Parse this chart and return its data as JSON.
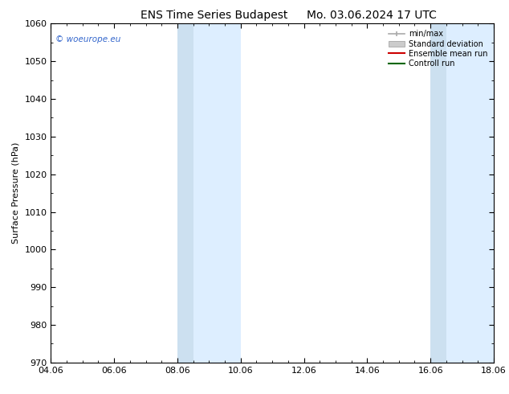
{
  "title_left": "ENS Time Series Budapest",
  "title_right": "Mo. 03.06.2024 17 UTC",
  "ylabel": "Surface Pressure (hPa)",
  "ylim": [
    970,
    1060
  ],
  "yticks": [
    970,
    980,
    990,
    1000,
    1010,
    1020,
    1030,
    1040,
    1050,
    1060
  ],
  "xlim_start": 0.0,
  "xlim_end": 14.0,
  "xtick_positions": [
    0,
    2,
    4,
    6,
    8,
    10,
    12,
    14
  ],
  "xtick_labels": [
    "04.06",
    "06.06",
    "08.06",
    "10.06",
    "12.06",
    "14.06",
    "16.06",
    "18.06"
  ],
  "shaded_bands": [
    {
      "xmin": 4.0,
      "xmax": 4.5,
      "color": "#cce0f0"
    },
    {
      "xmin": 4.5,
      "xmax": 6.0,
      "color": "#ddeeff"
    },
    {
      "xmin": 12.0,
      "xmax": 12.5,
      "color": "#cce0f0"
    },
    {
      "xmin": 12.5,
      "xmax": 14.0,
      "color": "#ddeeff"
    }
  ],
  "shade_color_light": "#ddeeff",
  "shade_color_dark": "#cce0f0",
  "watermark_text": "© woeurope.eu",
  "watermark_color": "#3366cc",
  "legend_entries": [
    {
      "label": "min/max",
      "color": "#aaaaaa",
      "type": "minmax"
    },
    {
      "label": "Standard deviation",
      "color": "#cccccc",
      "type": "stddev"
    },
    {
      "label": "Ensemble mean run",
      "color": "#cc0000",
      "type": "line"
    },
    {
      "label": "Controll run",
      "color": "#006600",
      "type": "line"
    }
  ],
  "background_color": "#ffffff",
  "title_fontsize": 10,
  "axis_fontsize": 8,
  "tick_fontsize": 8
}
